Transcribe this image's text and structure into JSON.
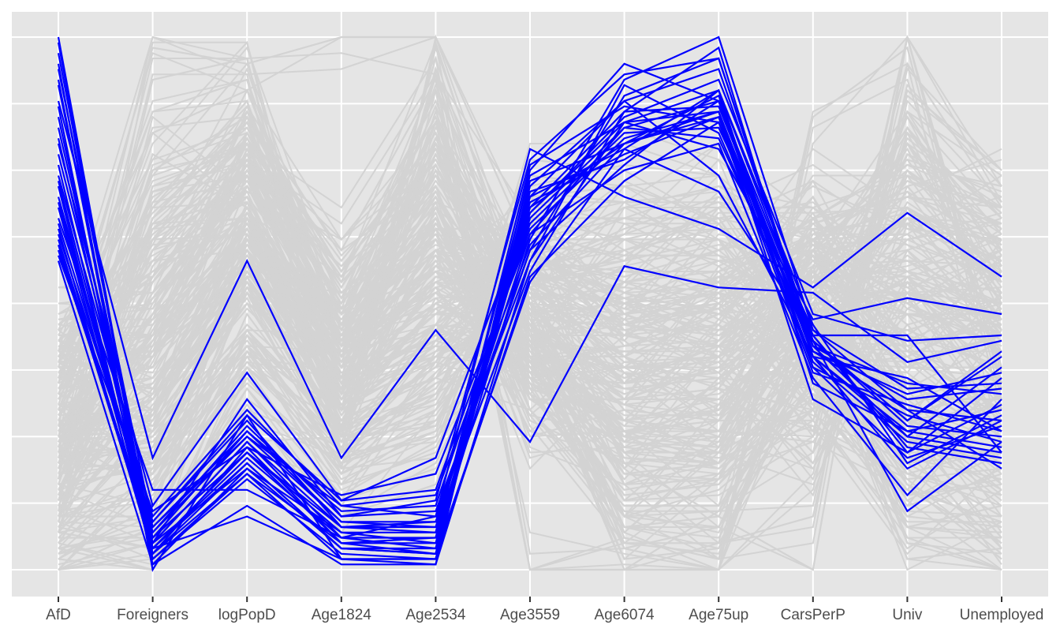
{
  "chart_data": {
    "type": "parallel-coordinates",
    "title": "",
    "xlabel": "",
    "ylabel": "",
    "ylim": [
      0,
      1
    ],
    "grid": true,
    "legend": "none",
    "categories": [
      "AfD",
      "Foreigners",
      "logPopD",
      "Age1824",
      "Age2534",
      "Age3559",
      "Age6074",
      "Age75up",
      "CarsPerP",
      "Univ",
      "Unemployed"
    ],
    "colors": {
      "highlight": "#0000FF",
      "background": "#D3D3D3",
      "panel": "#E5E5E5",
      "grid": "#FFFFFF",
      "text": "#4D4D4D"
    },
    "highlighted_series": [
      [
        1.0,
        0.04,
        0.22,
        0.05,
        0.05,
        0.62,
        0.92,
        1.0,
        0.45,
        0.3,
        0.28
      ],
      [
        0.99,
        0.03,
        0.2,
        0.04,
        0.03,
        0.68,
        0.86,
        0.98,
        0.4,
        0.25,
        0.22
      ],
      [
        0.94,
        0.08,
        0.25,
        0.12,
        0.1,
        0.6,
        0.89,
        0.96,
        0.42,
        0.32,
        0.34
      ],
      [
        0.92,
        0.02,
        0.18,
        0.02,
        0.02,
        0.72,
        0.88,
        0.94,
        0.43,
        0.27,
        0.25
      ],
      [
        0.91,
        0.06,
        0.26,
        0.09,
        0.08,
        0.66,
        0.83,
        0.88,
        0.38,
        0.29,
        0.24
      ],
      [
        0.85,
        0.05,
        0.24,
        0.08,
        0.07,
        0.74,
        0.84,
        0.9,
        0.44,
        0.22,
        0.31
      ],
      [
        0.83,
        0.07,
        0.27,
        0.1,
        0.11,
        0.58,
        0.91,
        0.82,
        0.41,
        0.33,
        0.37
      ],
      [
        0.81,
        0.04,
        0.21,
        0.06,
        0.04,
        0.7,
        0.79,
        0.9,
        0.46,
        0.2,
        0.29
      ],
      [
        0.78,
        0.09,
        0.29,
        0.13,
        0.15,
        0.64,
        0.81,
        0.86,
        0.39,
        0.24,
        0.21
      ],
      [
        0.76,
        0.03,
        0.23,
        0.05,
        0.06,
        0.76,
        0.87,
        0.84,
        0.37,
        0.31,
        0.26
      ],
      [
        0.74,
        0.1,
        0.3,
        0.12,
        0.14,
        0.61,
        0.8,
        0.89,
        0.4,
        0.26,
        0.23
      ],
      [
        0.73,
        0.05,
        0.19,
        0.07,
        0.05,
        0.67,
        0.85,
        0.92,
        0.48,
        0.43,
        0.44
      ],
      [
        0.72,
        0.02,
        0.17,
        0.03,
        0.02,
        0.71,
        0.77,
        0.88,
        0.44,
        0.23,
        0.2
      ],
      [
        0.7,
        0.07,
        0.25,
        0.09,
        0.09,
        0.63,
        0.83,
        0.81,
        0.42,
        0.35,
        0.33
      ],
      [
        0.69,
        0.06,
        0.22,
        0.08,
        0.08,
        0.56,
        0.86,
        0.87,
        0.43,
        0.28,
        0.4
      ],
      [
        0.68,
        0.04,
        0.2,
        0.04,
        0.04,
        0.69,
        0.78,
        0.85,
        0.38,
        0.21,
        0.27
      ],
      [
        0.66,
        0.15,
        0.15,
        0.06,
        0.1,
        0.79,
        0.7,
        0.64,
        0.53,
        0.67,
        0.55
      ],
      [
        0.65,
        0.08,
        0.26,
        0.11,
        0.12,
        0.65,
        0.82,
        0.83,
        0.45,
        0.34,
        0.35
      ],
      [
        0.64,
        0.03,
        0.18,
        0.05,
        0.03,
        0.73,
        0.8,
        0.86,
        0.41,
        0.3,
        0.19
      ],
      [
        0.63,
        0.09,
        0.28,
        0.08,
        0.09,
        0.6,
        0.76,
        0.9,
        0.35,
        0.26,
        0.3
      ],
      [
        0.62,
        0.05,
        0.24,
        0.06,
        0.06,
        0.67,
        0.84,
        0.79,
        0.47,
        0.51,
        0.48
      ],
      [
        0.61,
        0.04,
        0.1,
        0.02,
        0.02,
        0.55,
        0.73,
        0.84,
        0.43,
        0.11,
        0.24
      ],
      [
        0.6,
        0.06,
        0.22,
        0.07,
        0.07,
        0.7,
        0.88,
        0.74,
        0.4,
        0.19,
        0.28
      ],
      [
        0.59,
        0.11,
        0.23,
        0.14,
        0.18,
        0.63,
        0.75,
        0.8,
        0.36,
        0.14,
        0.32
      ],
      [
        0.58,
        0.01,
        0.19,
        0.04,
        0.03,
        0.54,
        0.79,
        0.71,
        0.44,
        0.44,
        0.22
      ],
      [
        0.95,
        0.0,
        0.29,
        0.02,
        0.01,
        0.58,
        0.84,
        0.86,
        0.32,
        0.22,
        0.36
      ],
      [
        0.88,
        0.21,
        0.58,
        0.21,
        0.45,
        0.24,
        0.57,
        0.53,
        0.52,
        0.39,
        0.43
      ],
      [
        0.8,
        0.12,
        0.37,
        0.13,
        0.21,
        0.68,
        0.8,
        0.85,
        0.42,
        0.25,
        0.38
      ],
      [
        0.87,
        0.01,
        0.12,
        0.01,
        0.01,
        0.75,
        0.95,
        0.88,
        0.4,
        0.36,
        0.26
      ],
      [
        0.97,
        0.05,
        0.32,
        0.1,
        0.13,
        0.77,
        0.93,
        0.96,
        0.43,
        0.28,
        0.41
      ]
    ],
    "background_series": [
      [
        0.35,
        0.98,
        0.95,
        1.0,
        1.0,
        0.6,
        0.2,
        0.1,
        0.0,
        1.0,
        0.35
      ],
      [
        0.45,
        0.82,
        0.9,
        0.45,
        0.9,
        0.0,
        0.0,
        0.0,
        0.85,
        0.98,
        0.3
      ],
      [
        0.3,
        0.75,
        0.85,
        0.6,
        0.92,
        0.0,
        0.05,
        0.05,
        0.1,
        0.9,
        0.75
      ],
      [
        0.28,
        0.7,
        0.8,
        0.55,
        0.85,
        0.3,
        0.1,
        0.15,
        0.3,
        0.95,
        0.68
      ],
      [
        0.4,
        0.68,
        0.88,
        0.4,
        0.8,
        0.5,
        0.3,
        0.2,
        0.55,
        0.85,
        0.6
      ],
      [
        0.25,
        0.6,
        0.78,
        0.35,
        0.75,
        0.55,
        0.4,
        0.3,
        0.6,
        0.75,
        0.55
      ],
      [
        0.2,
        0.55,
        0.75,
        0.5,
        0.7,
        0.45,
        0.35,
        0.4,
        0.65,
        0.7,
        0.62
      ],
      [
        0.32,
        0.65,
        0.7,
        0.3,
        0.6,
        0.4,
        0.25,
        0.35,
        0.5,
        0.8,
        0.5
      ],
      [
        0.15,
        0.5,
        0.72,
        0.42,
        0.65,
        0.48,
        0.45,
        0.45,
        0.58,
        0.65,
        0.58
      ],
      [
        0.1,
        0.45,
        0.68,
        0.38,
        0.55,
        0.52,
        0.38,
        0.5,
        0.62,
        0.72,
        0.52
      ],
      [
        0.38,
        0.4,
        0.65,
        0.33,
        0.58,
        0.35,
        0.28,
        0.32,
        0.48,
        0.6,
        0.45
      ],
      [
        0.22,
        0.35,
        0.6,
        0.28,
        0.5,
        0.42,
        0.33,
        0.38,
        0.45,
        0.55,
        0.4
      ],
      [
        0.05,
        0.3,
        0.55,
        0.25,
        0.45,
        0.5,
        0.48,
        0.55,
        0.55,
        0.5,
        0.42
      ],
      [
        0.18,
        0.25,
        0.5,
        0.22,
        0.4,
        0.38,
        0.42,
        0.48,
        0.42,
        0.45,
        0.38
      ],
      [
        0.26,
        0.2,
        0.45,
        0.2,
        0.35,
        0.44,
        0.36,
        0.42,
        0.38,
        0.4,
        0.3
      ],
      [
        0.12,
        0.18,
        0.62,
        0.35,
        0.48,
        0.46,
        0.22,
        0.25,
        0.52,
        0.35,
        0.25
      ],
      [
        0.08,
        0.15,
        0.58,
        0.3,
        0.42,
        0.4,
        0.18,
        0.2,
        0.48,
        0.3,
        0.2
      ],
      [
        0.33,
        0.28,
        0.66,
        0.4,
        0.52,
        0.36,
        0.26,
        0.28,
        0.44,
        0.25,
        0.15
      ],
      [
        0.42,
        0.38,
        0.74,
        0.48,
        0.62,
        0.33,
        0.15,
        0.18,
        0.4,
        0.2,
        0.1
      ],
      [
        0.36,
        0.42,
        0.82,
        0.52,
        0.68,
        0.3,
        0.12,
        0.12,
        0.35,
        0.15,
        0.05
      ],
      [
        0.14,
        0.48,
        0.76,
        0.44,
        0.72,
        0.28,
        0.2,
        0.22,
        0.32,
        0.1,
        0.08
      ],
      [
        0.24,
        0.52,
        0.7,
        0.36,
        0.66,
        0.25,
        0.3,
        0.28,
        0.28,
        0.08,
        0.12
      ],
      [
        0.3,
        0.58,
        0.64,
        0.32,
        0.6,
        0.38,
        0.34,
        0.36,
        0.34,
        0.12,
        0.18
      ],
      [
        0.46,
        0.62,
        0.84,
        0.46,
        0.78,
        0.42,
        0.24,
        0.3,
        0.46,
        0.18,
        0.14
      ],
      [
        0.2,
        0.44,
        0.86,
        0.56,
        0.82,
        0.46,
        0.16,
        0.24,
        0.56,
        0.22,
        0.22
      ],
      [
        0.02,
        0.12,
        0.52,
        0.26,
        0.38,
        0.54,
        0.5,
        0.58,
        0.6,
        0.28,
        0.28
      ],
      [
        0.0,
        0.08,
        0.48,
        0.24,
        0.34,
        0.58,
        0.55,
        0.6,
        0.64,
        0.32,
        0.32
      ],
      [
        0.16,
        0.22,
        0.56,
        0.34,
        0.44,
        0.6,
        0.44,
        0.52,
        0.66,
        0.38,
        0.36
      ],
      [
        0.27,
        0.32,
        0.6,
        0.38,
        0.54,
        0.62,
        0.52,
        0.46,
        0.7,
        0.42,
        0.46
      ],
      [
        0.34,
        0.36,
        0.68,
        0.42,
        0.58,
        0.56,
        0.58,
        0.62,
        0.54,
        0.48,
        0.48
      ],
      [
        0.44,
        0.46,
        0.72,
        0.46,
        0.64,
        0.64,
        0.46,
        0.44,
        0.5,
        0.52,
        0.44
      ],
      [
        0.48,
        0.54,
        0.78,
        0.5,
        0.74,
        0.52,
        0.4,
        0.34,
        0.57,
        0.58,
        0.5
      ],
      [
        0.1,
        0.1,
        0.4,
        0.18,
        0.3,
        0.5,
        0.6,
        0.64,
        0.46,
        0.62,
        0.54
      ],
      [
        0.06,
        0.06,
        0.36,
        0.16,
        0.28,
        0.46,
        0.62,
        0.66,
        0.42,
        0.68,
        0.58
      ],
      [
        0.22,
        0.16,
        0.44,
        0.28,
        0.36,
        0.48,
        0.54,
        0.56,
        0.36,
        0.74,
        0.64
      ],
      [
        0.31,
        0.26,
        0.52,
        0.32,
        0.46,
        0.44,
        0.48,
        0.5,
        0.3,
        0.78,
        0.7
      ],
      [
        0.37,
        0.34,
        0.58,
        0.36,
        0.5,
        0.4,
        0.42,
        0.46,
        0.26,
        0.82,
        0.66
      ],
      [
        0.19,
        0.4,
        0.62,
        0.4,
        0.56,
        0.36,
        0.38,
        0.4,
        0.22,
        0.6,
        0.4
      ],
      [
        0.29,
        0.48,
        0.66,
        0.44,
        0.62,
        0.32,
        0.32,
        0.34,
        0.2,
        0.54,
        0.34
      ],
      [
        0.41,
        0.56,
        0.7,
        0.48,
        0.66,
        0.34,
        0.28,
        0.26,
        0.24,
        0.46,
        0.26
      ],
      [
        0.13,
        0.64,
        0.74,
        0.42,
        0.7,
        0.38,
        0.14,
        0.16,
        0.38,
        0.36,
        0.16
      ],
      [
        0.09,
        0.72,
        0.8,
        0.38,
        0.76,
        0.42,
        0.08,
        0.1,
        0.44,
        0.26,
        0.06
      ],
      [
        0.23,
        0.78,
        0.68,
        0.34,
        0.86,
        0.4,
        0.04,
        0.08,
        0.4,
        0.16,
        0.02
      ],
      [
        0.35,
        0.86,
        0.92,
        0.3,
        0.94,
        0.44,
        0.02,
        0.04,
        0.46,
        0.06,
        0.0
      ],
      [
        0.17,
        0.92,
        0.96,
        0.26,
        0.98,
        0.48,
        0.06,
        0.02,
        0.5,
        0.02,
        0.04
      ],
      [
        0.04,
        0.0,
        0.3,
        0.1,
        0.2,
        0.56,
        0.64,
        0.7,
        0.58,
        0.44,
        0.56
      ],
      [
        0.07,
        0.04,
        0.34,
        0.14,
        0.24,
        0.6,
        0.68,
        0.72,
        0.62,
        0.5,
        0.6
      ],
      [
        0.11,
        0.14,
        0.38,
        0.24,
        0.32,
        0.64,
        0.58,
        0.68,
        0.68,
        0.56,
        0.52
      ],
      [
        0.21,
        0.24,
        0.46,
        0.3,
        0.4,
        0.58,
        0.52,
        0.6,
        0.72,
        0.64,
        0.62
      ],
      [
        0.39,
        0.3,
        0.54,
        0.34,
        0.48,
        0.54,
        0.46,
        0.54,
        0.66,
        0.7,
        0.68
      ],
      [
        0.43,
        0.34,
        0.64,
        0.4,
        0.56,
        0.5,
        0.4,
        0.48,
        0.62,
        0.76,
        0.72
      ],
      [
        0.47,
        0.5,
        0.76,
        0.54,
        0.72,
        0.46,
        0.36,
        0.42,
        0.58,
        0.66,
        0.65
      ],
      [
        0.26,
        0.6,
        0.82,
        0.58,
        0.8,
        0.5,
        0.32,
        0.38,
        0.54,
        0.58,
        0.57
      ],
      [
        0.13,
        0.66,
        0.86,
        0.48,
        0.84,
        0.44,
        0.26,
        0.3,
        0.52,
        0.52,
        0.47
      ],
      [
        0.33,
        0.38,
        0.58,
        0.44,
        0.52,
        0.62,
        0.62,
        0.58,
        0.48,
        0.34,
        0.43
      ],
      [
        0.25,
        0.28,
        0.5,
        0.36,
        0.44,
        0.66,
        0.66,
        0.62,
        0.44,
        0.28,
        0.37
      ],
      [
        0.15,
        0.2,
        0.42,
        0.28,
        0.38,
        0.7,
        0.72,
        0.66,
        0.4,
        0.24,
        0.33
      ],
      [
        0.03,
        0.1,
        0.32,
        0.2,
        0.26,
        0.72,
        0.76,
        0.74,
        0.36,
        0.2,
        0.29
      ],
      [
        0.4,
        0.44,
        0.62,
        0.46,
        0.6,
        0.48,
        0.5,
        0.44,
        0.56,
        0.4,
        0.49
      ],
      [
        0.3,
        0.36,
        0.56,
        0.4,
        0.54,
        0.52,
        0.44,
        0.4,
        0.6,
        0.46,
        0.51
      ]
    ]
  },
  "axis": {
    "labels": [
      "AfD",
      "Foreigners",
      "logPopD",
      "Age1824",
      "Age2534",
      "Age3559",
      "Age6074",
      "Age75up",
      "CarsPerP",
      "Univ",
      "Unemployed"
    ]
  }
}
